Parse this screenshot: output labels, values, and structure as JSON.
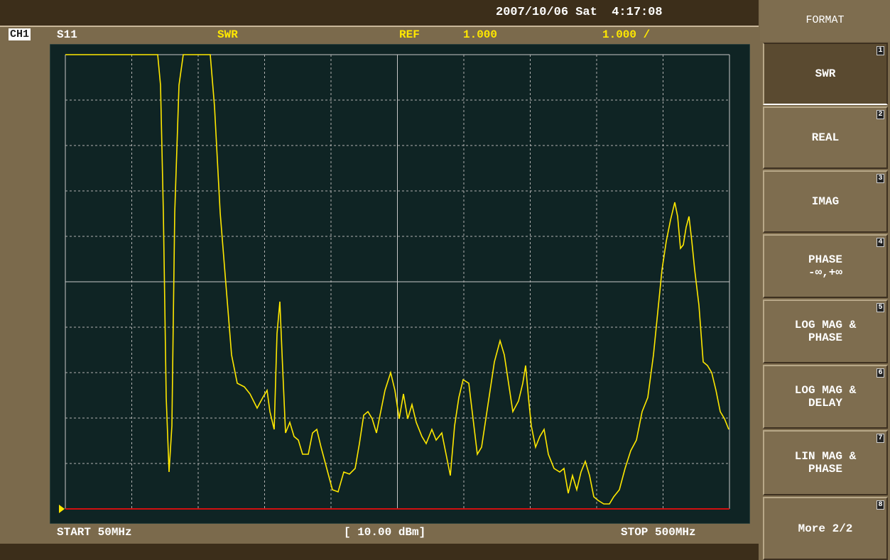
{
  "header": {
    "datetime": "2007/10/06 Sat  4:17:08",
    "channel": "CH1",
    "parameter": "S11",
    "format": "SWR",
    "ref_label": "REF",
    "ref_value": "1.000",
    "scale": "1.000 /"
  },
  "footer": {
    "start": "START 50MHz",
    "power": "[ 10.00 dBm]",
    "stop": "STOP 500MHz"
  },
  "menu": {
    "title": "FORMAT",
    "buttons": [
      {
        "label": "SWR",
        "number": "1"
      },
      {
        "label": "REAL",
        "number": "2"
      },
      {
        "label": "IMAG",
        "number": "3"
      },
      {
        "label": "PHASE",
        "sublabel": "-∞,+∞",
        "number": "4"
      },
      {
        "label": "LOG MAG &",
        "sublabel": "PHASE",
        "number": "5"
      },
      {
        "label": "LOG MAG &",
        "sublabel": "DELAY",
        "number": "6"
      },
      {
        "label": "LIN MAG &",
        "sublabel": "PHASE",
        "number": "7"
      },
      {
        "label": "More 2/2",
        "number": "8"
      }
    ]
  }
}
